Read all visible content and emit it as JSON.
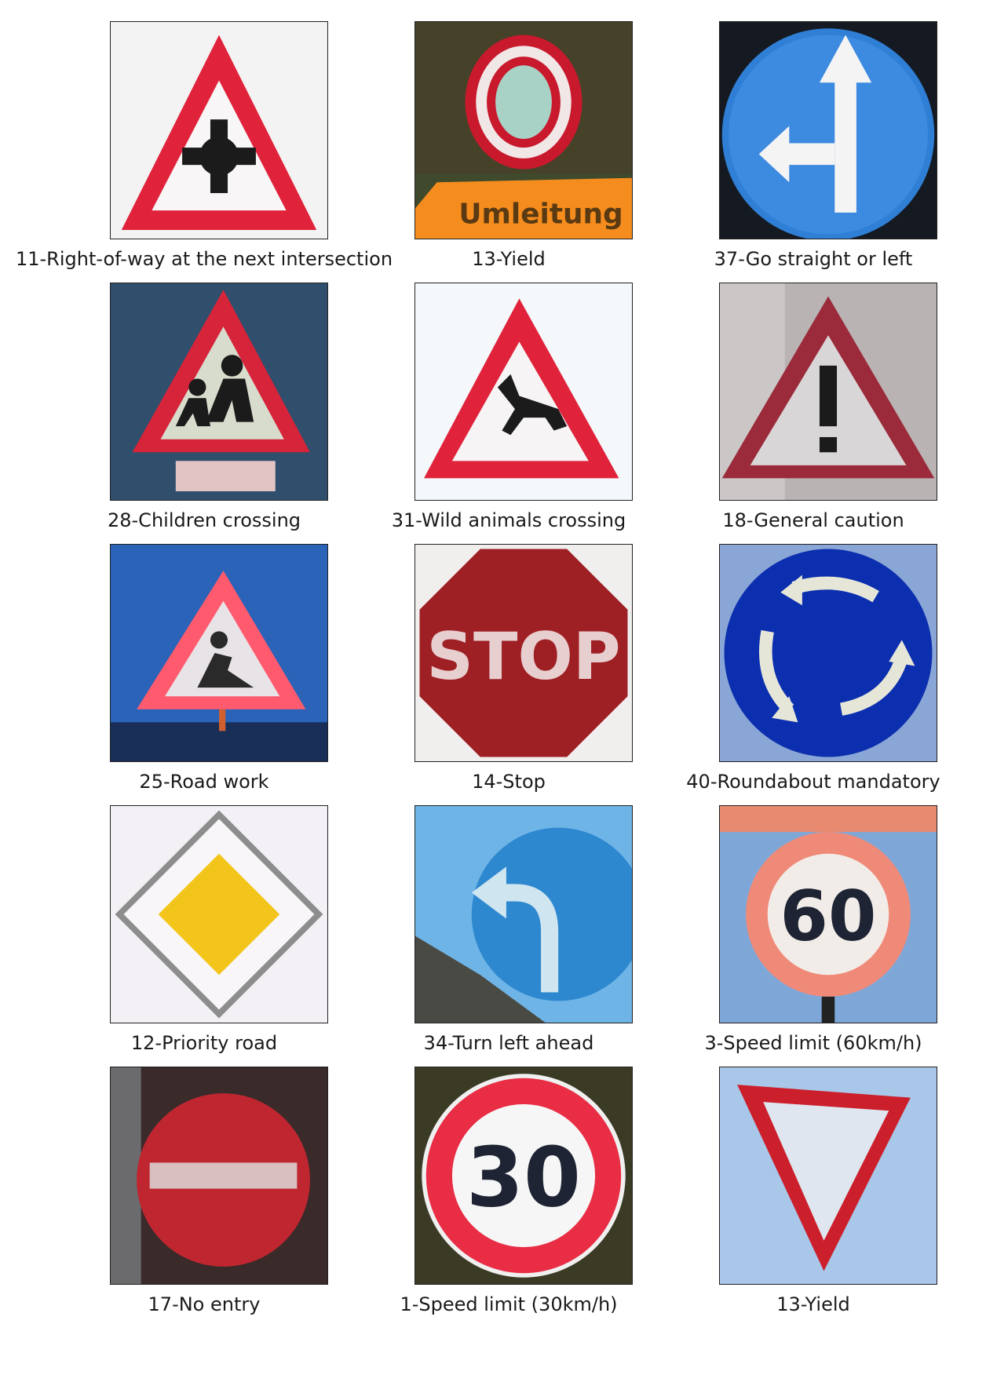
{
  "grid": [
    {
      "caption": "11-Right-of-way at the next intersection",
      "sign": "right-of-way-intersection"
    },
    {
      "caption": "13-Yield",
      "sign": "no-vehicles-with-umleitung-plate",
      "plate_text": "Umleitung"
    },
    {
      "caption": "37-Go straight or left",
      "sign": "go-straight-or-left"
    },
    {
      "caption": "28-Children crossing",
      "sign": "children-crossing"
    },
    {
      "caption": "31-Wild animals crossing",
      "sign": "wild-animals-crossing"
    },
    {
      "caption": "18-General caution",
      "sign": "general-caution"
    },
    {
      "caption": "25-Road work",
      "sign": "road-work"
    },
    {
      "caption": "14-Stop",
      "sign": "stop",
      "sign_text": "STOP"
    },
    {
      "caption": "40-Roundabout mandatory",
      "sign": "roundabout-mandatory"
    },
    {
      "caption": "12-Priority road",
      "sign": "priority-road"
    },
    {
      "caption": "34-Turn left ahead",
      "sign": "turn-left-ahead"
    },
    {
      "caption": "3-Speed limit (60km/h)",
      "sign": "speed-limit-60",
      "sign_text": "60"
    },
    {
      "caption": "17-No entry",
      "sign": "no-entry"
    },
    {
      "caption": "1-Speed limit (30km/h)",
      "sign": "speed-limit-30",
      "sign_text": "30"
    },
    {
      "caption": "13-Yield",
      "sign": "yield"
    }
  ],
  "colors": {
    "sign_red": "#e0233a",
    "sign_blue": "#2f7fd6",
    "priority_yellow": "#f3c51a",
    "stop_red": "#9e1f24",
    "umleitung_orange": "#f58c1e"
  }
}
